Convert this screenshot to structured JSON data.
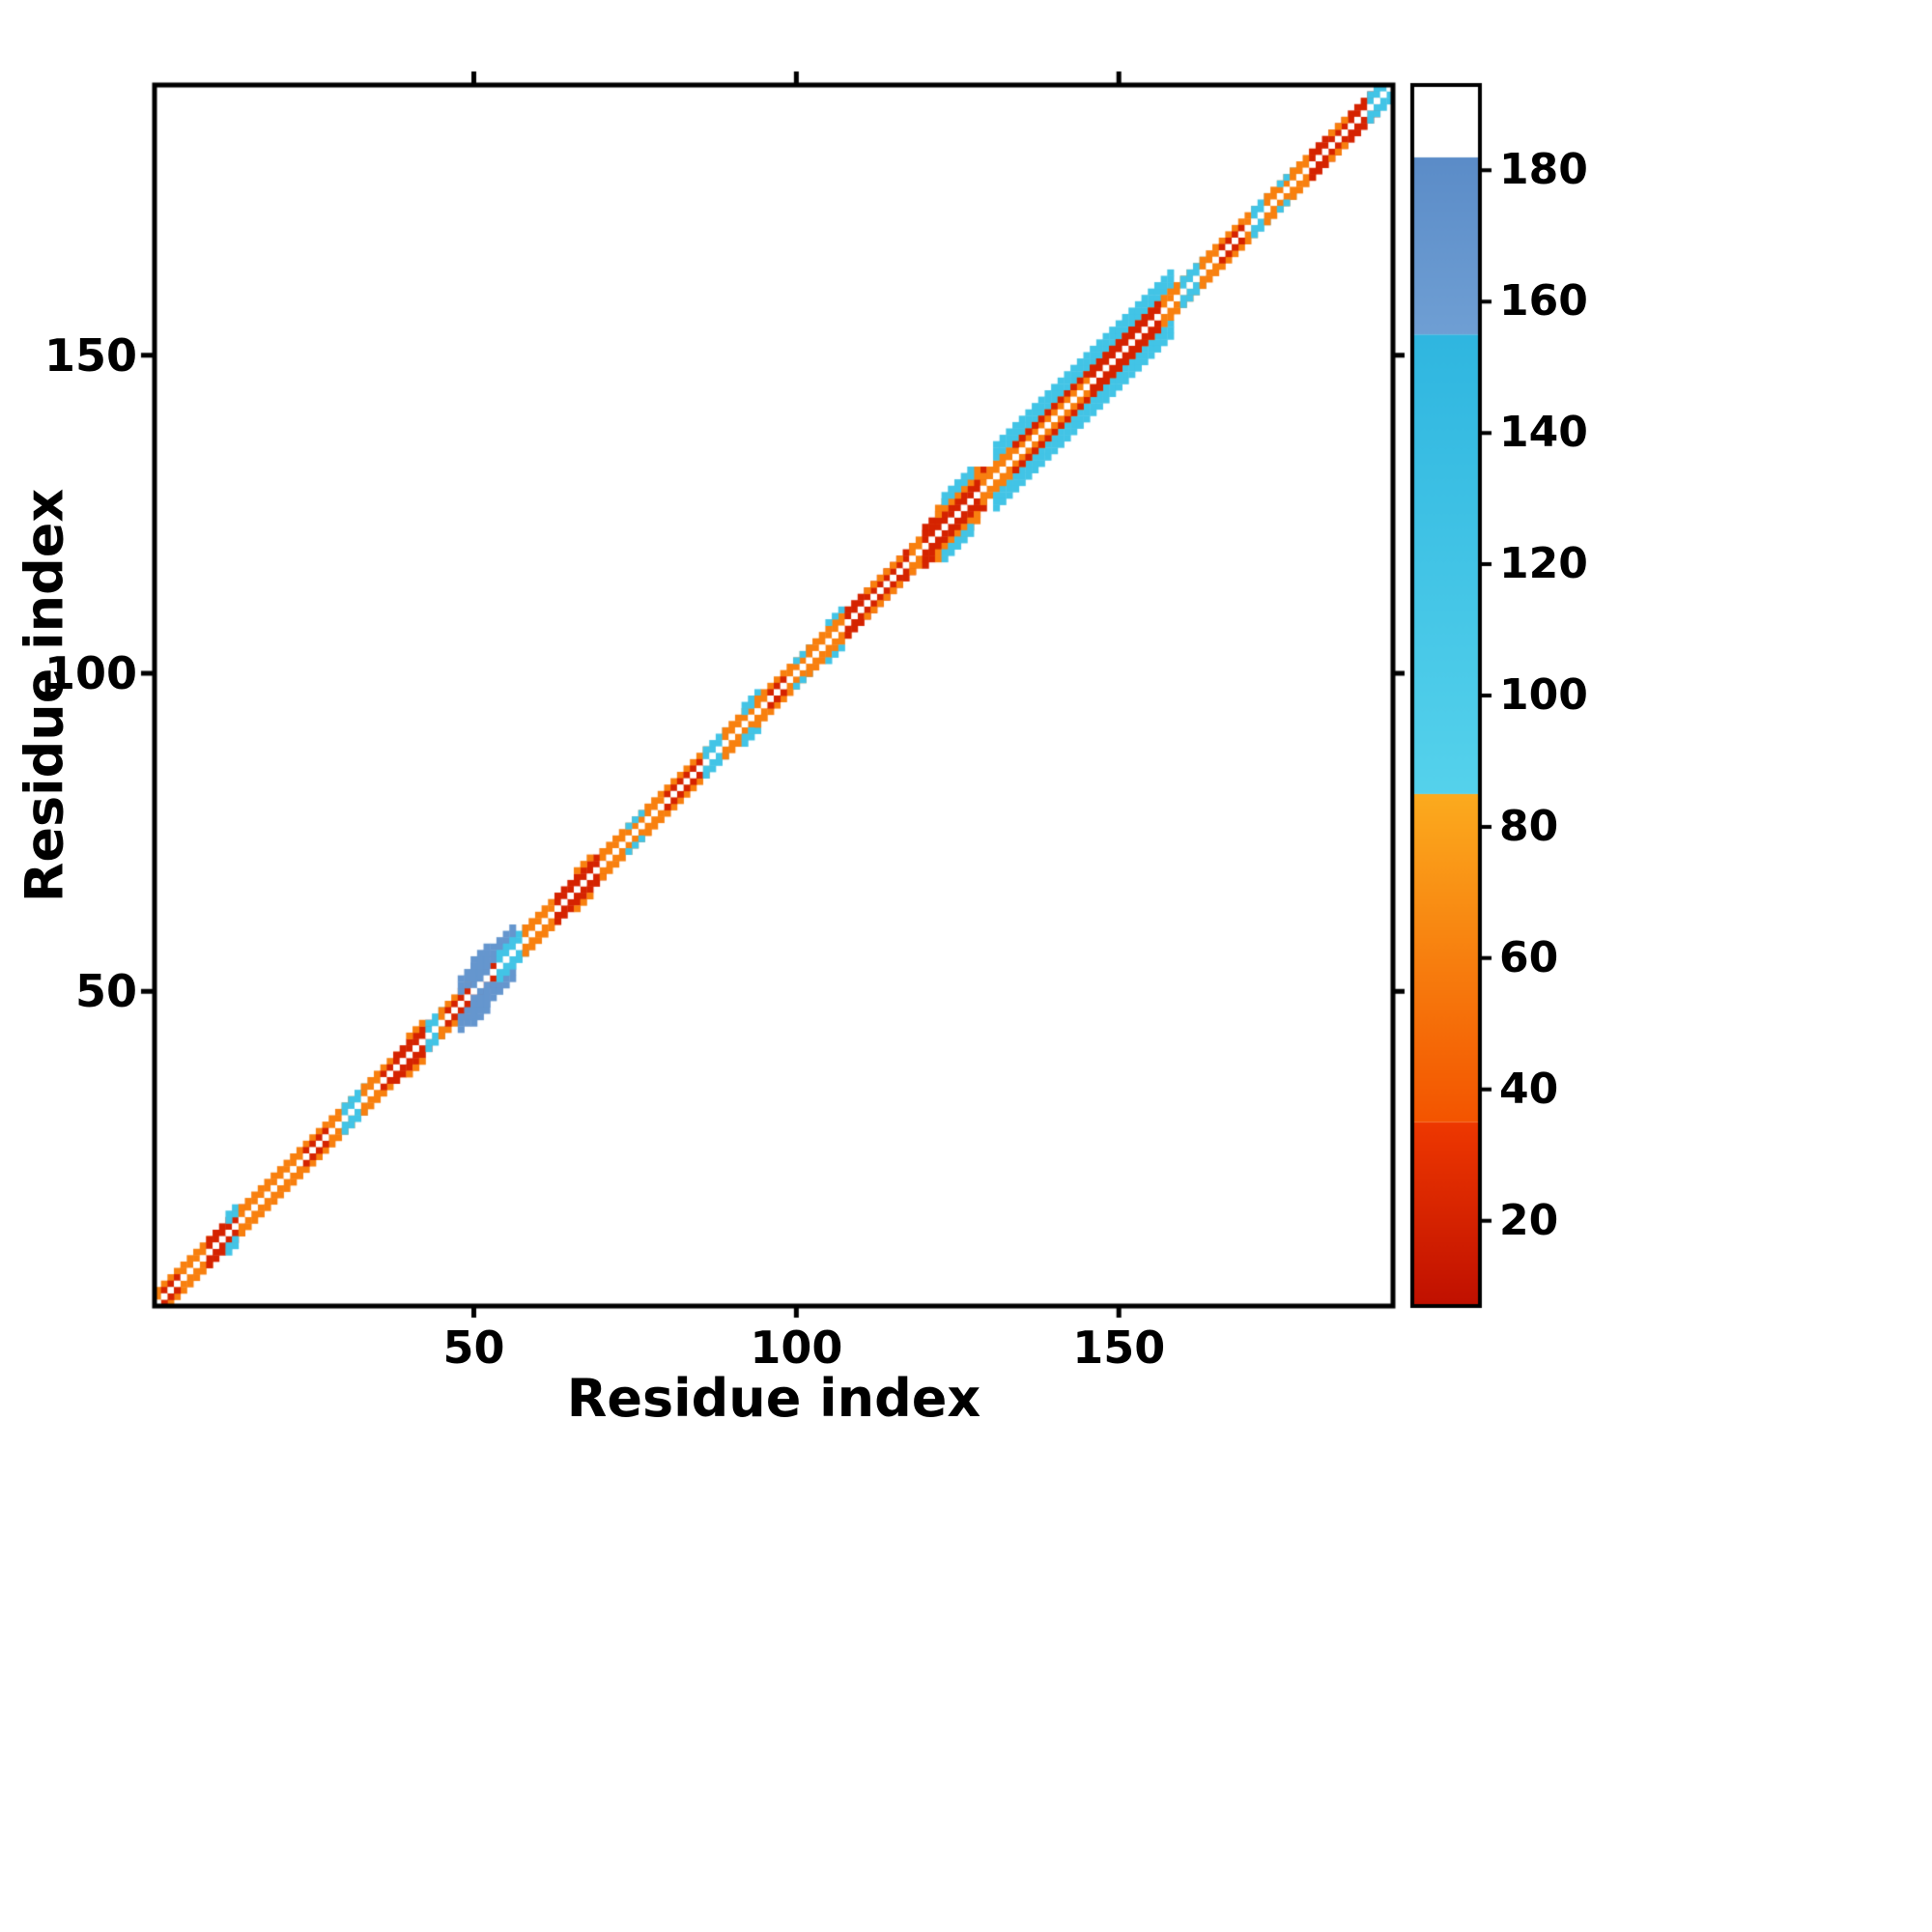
{
  "figure": {
    "background": "#ffffff"
  },
  "chart_data": {
    "type": "heatmap",
    "title": "",
    "xlabel": "Residue index",
    "ylabel": "Residue index",
    "x_range": [
      1,
      192
    ],
    "y_range": [
      1,
      192
    ],
    "x_ticks": [
      50,
      100,
      150
    ],
    "y_ticks": [
      50,
      100,
      150
    ],
    "grid": false,
    "diagonal_gap_color": "#ffffff",
    "colorbar": {
      "position": "right",
      "range": [
        7,
        193
      ],
      "ticks": [
        20,
        40,
        60,
        80,
        100,
        120,
        140,
        160,
        180
      ],
      "segments": [
        {
          "from": 7,
          "to": 35,
          "color_bottom": "#c01000",
          "color_top": "#ee3800",
          "name": "red"
        },
        {
          "from": 35,
          "to": 85,
          "color_bottom": "#f35400",
          "color_top": "#fcab1e",
          "name": "orange"
        },
        {
          "from": 85,
          "to": 155,
          "color_bottom": "#55d2ec",
          "color_top": "#2fb6e0",
          "name": "cyan"
        },
        {
          "from": 155,
          "to": 182,
          "color_bottom": "#6f9fd4",
          "color_top": "#5b8cc8",
          "name": "steel-blue"
        },
        {
          "from": 182,
          "to": 193,
          "color_bottom": "#ffffff",
          "color_top": "#ffffff",
          "name": "white"
        }
      ]
    },
    "band_segments": [
      {
        "from": 1,
        "to": 9,
        "offsets": [
          1,
          2
        ],
        "value": 60
      },
      {
        "from": 2,
        "to": 4,
        "offsets": [
          1
        ],
        "value": 20
      },
      {
        "from": 9,
        "to": 14,
        "offsets": [
          1,
          2
        ],
        "value": 20
      },
      {
        "from": 12,
        "to": 13,
        "offsets": [
          2,
          3
        ],
        "value": 120
      },
      {
        "from": 14,
        "to": 31,
        "offsets": [
          1,
          2
        ],
        "value": 60
      },
      {
        "from": 24,
        "to": 27,
        "offsets": [
          1
        ],
        "value": 20
      },
      {
        "from": 30,
        "to": 33,
        "offsets": [
          1,
          2
        ],
        "value": 120
      },
      {
        "from": 33,
        "to": 38,
        "offsets": [
          1,
          2
        ],
        "value": 60
      },
      {
        "from": 36,
        "to": 38,
        "offsets": [
          1
        ],
        "value": 20
      },
      {
        "from": 38,
        "to": 43,
        "offsets": [
          1,
          2
        ],
        "value": 20
      },
      {
        "from": 40,
        "to": 42,
        "offsets": [
          3
        ],
        "value": 60
      },
      {
        "from": 43,
        "to": 45,
        "offsets": [
          1,
          2
        ],
        "value": 120
      },
      {
        "from": 45,
        "to": 49,
        "offsets": [
          1,
          2
        ],
        "value": 60
      },
      {
        "from": 46,
        "to": 53,
        "offsets": [
          1
        ],
        "value": 20
      },
      {
        "from": 48,
        "to": 56,
        "offsets": [
          2,
          3,
          4
        ],
        "value": 168
      },
      {
        "from": 50,
        "to": 52,
        "offsets": [
          1,
          2,
          3,
          4,
          5
        ],
        "value": 168
      },
      {
        "from": 54,
        "to": 58,
        "offsets": [
          1,
          2
        ],
        "value": 120
      },
      {
        "from": 58,
        "to": 63,
        "offsets": [
          1,
          2
        ],
        "value": 60
      },
      {
        "from": 63,
        "to": 70,
        "offsets": [
          1,
          2
        ],
        "value": 20
      },
      {
        "from": 66,
        "to": 68,
        "offsets": [
          3
        ],
        "value": 60
      },
      {
        "from": 70,
        "to": 77,
        "offsets": [
          1,
          2
        ],
        "value": 60
      },
      {
        "from": 74,
        "to": 76,
        "offsets": [
          2
        ],
        "value": 120
      },
      {
        "from": 77,
        "to": 86,
        "offsets": [
          1,
          2
        ],
        "value": 60
      },
      {
        "from": 80,
        "to": 85,
        "offsets": [
          1
        ],
        "value": 20
      },
      {
        "from": 86,
        "to": 89,
        "offsets": [
          1,
          2
        ],
        "value": 120
      },
      {
        "from": 89,
        "to": 94,
        "offsets": [
          1,
          2
        ],
        "value": 60
      },
      {
        "from": 92,
        "to": 94,
        "offsets": [
          2,
          3
        ],
        "value": 120
      },
      {
        "from": 94,
        "to": 102,
        "offsets": [
          1,
          2
        ],
        "value": 60
      },
      {
        "from": 96,
        "to": 98,
        "offsets": [
          1
        ],
        "value": 20
      },
      {
        "from": 100,
        "to": 102,
        "offsets": [
          2
        ],
        "value": 120
      },
      {
        "from": 102,
        "to": 108,
        "offsets": [
          1,
          2
        ],
        "value": 60
      },
      {
        "from": 105,
        "to": 107,
        "offsets": [
          3
        ],
        "value": 120
      },
      {
        "from": 108,
        "to": 118,
        "offsets": [
          1,
          2
        ],
        "value": 20
      },
      {
        "from": 111,
        "to": 116,
        "offsets": [
          2
        ],
        "value": 60
      },
      {
        "from": 118,
        "to": 122,
        "offsets": [
          1,
          2
        ],
        "value": 60
      },
      {
        "from": 120,
        "to": 129,
        "offsets": [
          1,
          2,
          3
        ],
        "value": 20
      },
      {
        "from": 122,
        "to": 128,
        "offsets": [
          3,
          4
        ],
        "value": 60
      },
      {
        "from": 123,
        "to": 127,
        "offsets": [
          4,
          5
        ],
        "value": 120
      },
      {
        "from": 129,
        "to": 132,
        "offsets": [
          1,
          2
        ],
        "value": 60
      },
      {
        "from": 131,
        "to": 158,
        "offsets": [
          3,
          4,
          5
        ],
        "value": 120
      },
      {
        "from": 132,
        "to": 157,
        "offsets": [
          1,
          2
        ],
        "value": 60
      },
      {
        "from": 134,
        "to": 152,
        "offsets": [
          2
        ],
        "value": 20
      },
      {
        "from": 146,
        "to": 156,
        "offsets": [
          1,
          2
        ],
        "value": 20
      },
      {
        "from": 139,
        "to": 145,
        "offsets": [
          1
        ],
        "value": 60
      },
      {
        "from": 158,
        "to": 162,
        "offsets": [
          1,
          2
        ],
        "value": 60
      },
      {
        "from": 160,
        "to": 163,
        "offsets": [
          1,
          2
        ],
        "value": 120
      },
      {
        "from": 163,
        "to": 171,
        "offsets": [
          1,
          2
        ],
        "value": 60
      },
      {
        "from": 166,
        "to": 169,
        "offsets": [
          1
        ],
        "value": 20
      },
      {
        "from": 171,
        "to": 173,
        "offsets": [
          1,
          2
        ],
        "value": 120
      },
      {
        "from": 173,
        "to": 177,
        "offsets": [
          1,
          2
        ],
        "value": 60
      },
      {
        "from": 175,
        "to": 177,
        "offsets": [
          2
        ],
        "value": 120
      },
      {
        "from": 177,
        "to": 180,
        "offsets": [
          1,
          2
        ],
        "value": 60
      },
      {
        "from": 180,
        "to": 190,
        "offsets": [
          1,
          2
        ],
        "value": 20
      },
      {
        "from": 183,
        "to": 185,
        "offsets": [
          2
        ],
        "value": 60
      },
      {
        "from": 189,
        "to": 192,
        "offsets": [
          1,
          2
        ],
        "value": 120
      }
    ]
  }
}
